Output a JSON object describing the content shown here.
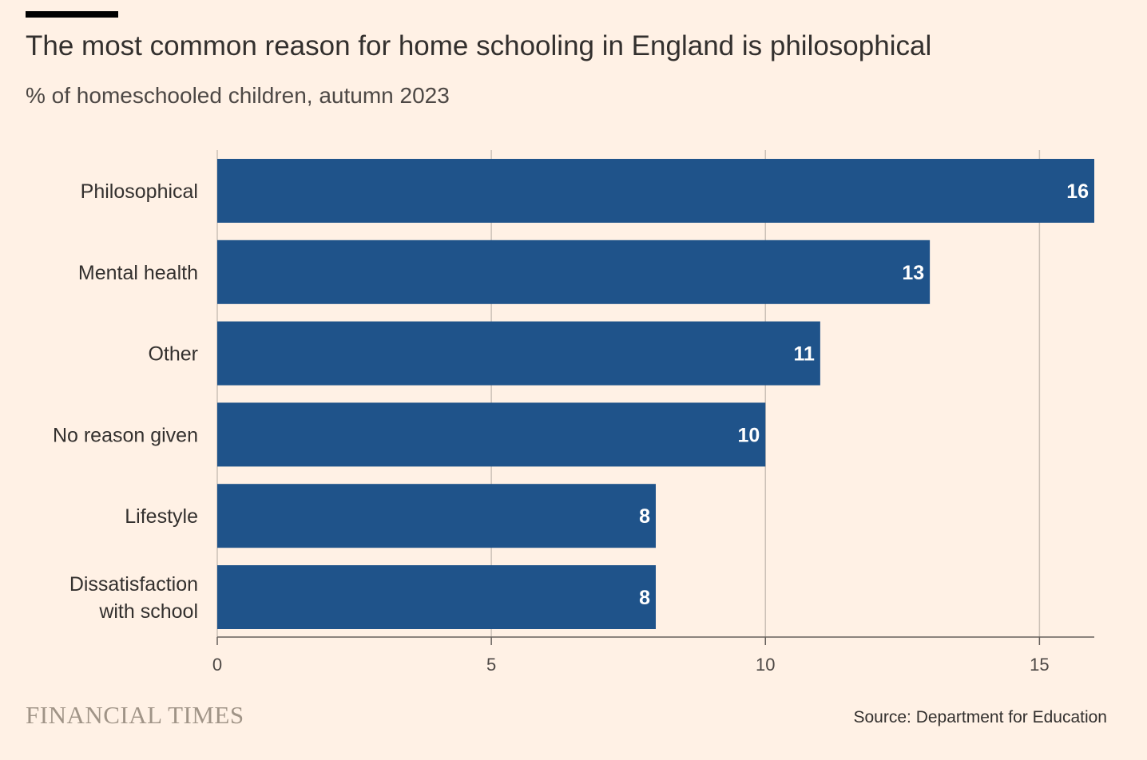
{
  "header": {
    "title": "The most common reason for home schooling in England is philosophical",
    "subtitle": "% of homeschooled children, autumn 2023"
  },
  "footer": {
    "brand": "FINANCIAL TIMES",
    "source": "Source: Department for Education"
  },
  "colors": {
    "background": "#fff1e5",
    "bar": "#1f538a",
    "grid": "#ccc1b7",
    "axis": "#66605c",
    "brand": "#a09487"
  },
  "chart_data": {
    "type": "bar",
    "orientation": "horizontal",
    "title": "The most common reason for home schooling in England is philosophical",
    "subtitle": "% of homeschooled children, autumn 2023",
    "categories": [
      [
        "Philosophical"
      ],
      [
        "Mental health"
      ],
      [
        "Other"
      ],
      [
        "No reason given"
      ],
      [
        "Lifestyle"
      ],
      [
        "Dissatisfaction",
        "with school"
      ]
    ],
    "values": [
      16,
      13,
      11,
      10,
      8,
      8
    ],
    "value_labels": [
      "16",
      "13",
      "11",
      "10",
      "8",
      "8"
    ],
    "xlim": [
      0,
      16
    ],
    "xticks": [
      0,
      5,
      10,
      15
    ],
    "xtick_labels": [
      "0",
      "5",
      "10",
      "15"
    ],
    "grid": true,
    "legend": "none"
  }
}
